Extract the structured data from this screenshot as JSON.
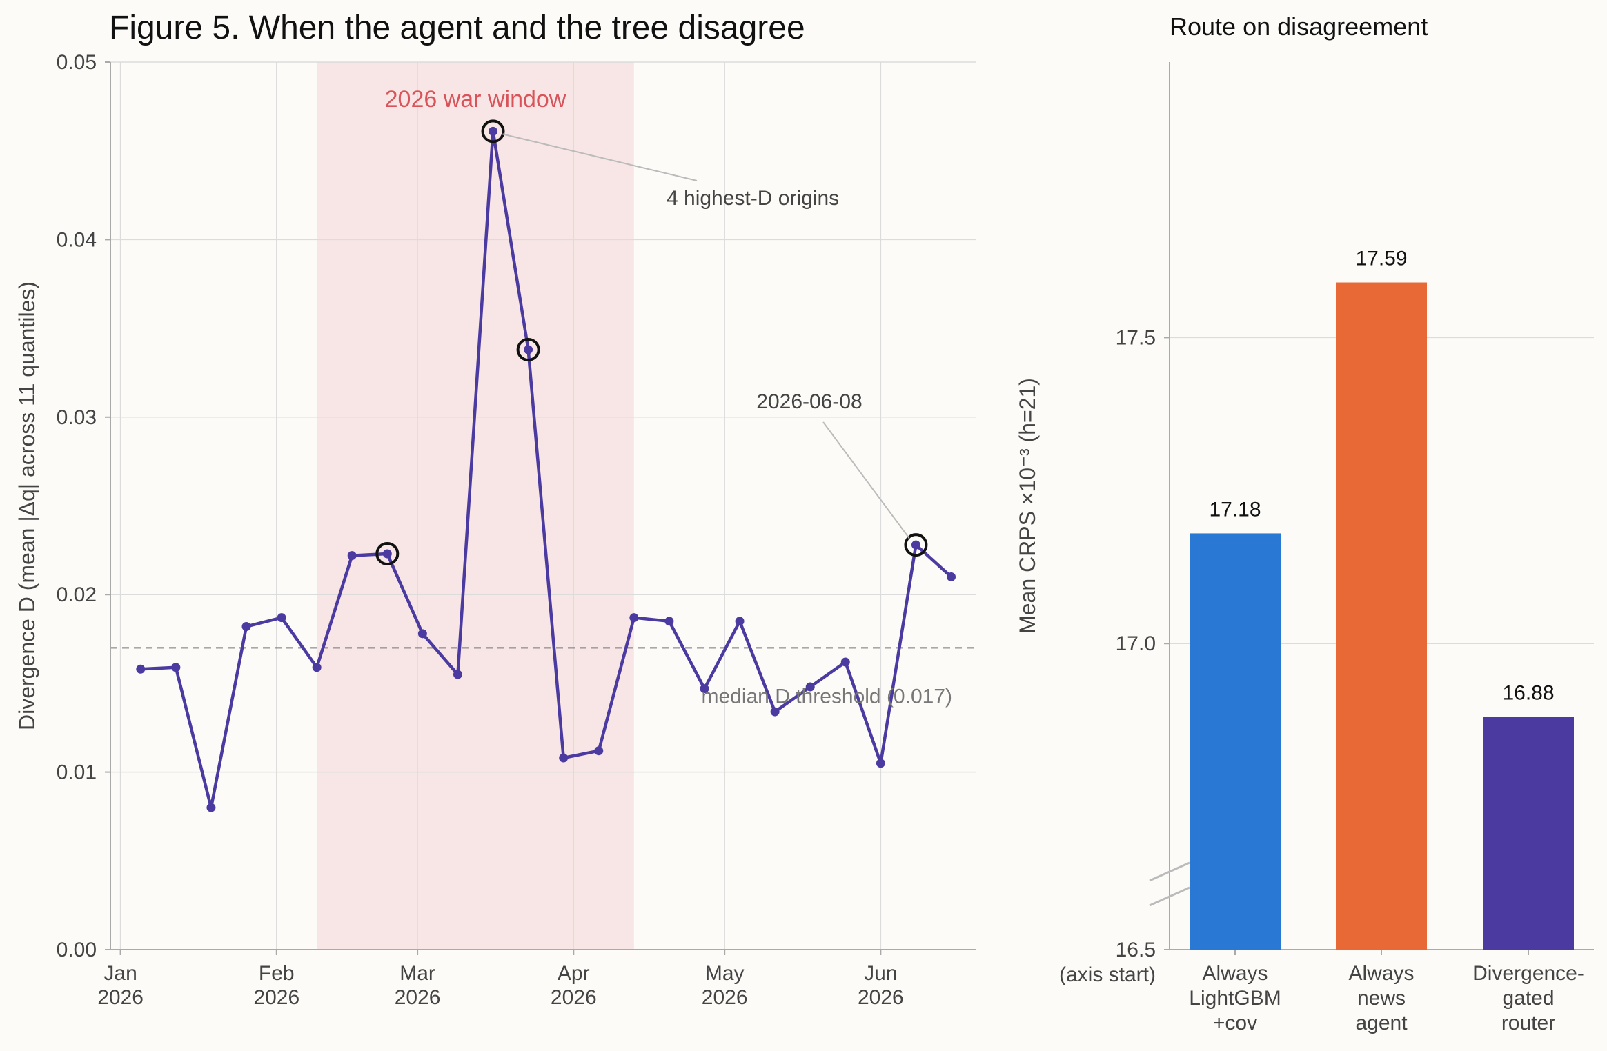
{
  "figure": {
    "title": "Figure 5.  When the agent and the tree disagree"
  },
  "colors": {
    "series": "#4b3aa0",
    "war_band": "#f7e6e5",
    "war_text": "#d9545a",
    "median": "#777777",
    "bar_lightgbm": "#2878d4",
    "bar_news": "#e96936",
    "bar_router": "#4b3aa0"
  },
  "chart_data": [
    {
      "type": "line",
      "title": "",
      "xlabel": "",
      "ylabel": "Divergence D  (mean |Δq| across 11 quantiles)",
      "ylim": [
        0,
        0.05
      ],
      "yticks": [
        "0.00",
        "0.01",
        "0.02",
        "0.03",
        "0.04",
        "0.05"
      ],
      "xlim": [
        "2025-12-30",
        "2026-06-20"
      ],
      "xticks": [
        {
          "date": "2026-01-01",
          "label": "Jan\n2026"
        },
        {
          "date": "2026-02-01",
          "label": "Feb\n2026"
        },
        {
          "date": "2026-03-01",
          "label": "Mar\n2026"
        },
        {
          "date": "2026-04-01",
          "label": "Apr\n2026"
        },
        {
          "date": "2026-05-01",
          "label": "May\n2026"
        },
        {
          "date": "2026-06-01",
          "label": "Jun\n2026"
        }
      ],
      "grid": true,
      "series": [
        {
          "points": [
            {
              "x": "2026-01-05",
              "y": 0.0158
            },
            {
              "x": "2026-01-12",
              "y": 0.0159
            },
            {
              "x": "2026-01-19",
              "y": 0.008
            },
            {
              "x": "2026-01-26",
              "y": 0.0182
            },
            {
              "x": "2026-02-02",
              "y": 0.0187
            },
            {
              "x": "2026-02-09",
              "y": 0.0159
            },
            {
              "x": "2026-02-16",
              "y": 0.0222
            },
            {
              "x": "2026-02-23",
              "y": 0.0223
            },
            {
              "x": "2026-03-02",
              "y": 0.0178
            },
            {
              "x": "2026-03-09",
              "y": 0.0155
            },
            {
              "x": "2026-03-16",
              "y": 0.0461
            },
            {
              "x": "2026-03-23",
              "y": 0.0338
            },
            {
              "x": "2026-03-30",
              "y": 0.0108
            },
            {
              "x": "2026-04-06",
              "y": 0.0112
            },
            {
              "x": "2026-04-13",
              "y": 0.0187
            },
            {
              "x": "2026-04-20",
              "y": 0.0185
            },
            {
              "x": "2026-04-27",
              "y": 0.0147
            },
            {
              "x": "2026-05-04",
              "y": 0.0185
            },
            {
              "x": "2026-05-11",
              "y": 0.0134
            },
            {
              "x": "2026-05-18",
              "y": 0.0148
            },
            {
              "x": "2026-05-25",
              "y": 0.0162
            },
            {
              "x": "2026-06-01",
              "y": 0.0105
            },
            {
              "x": "2026-06-08",
              "y": 0.0228
            },
            {
              "x": "2026-06-15",
              "y": 0.021
            }
          ]
        }
      ],
      "highlighted_points": [
        "2026-02-23",
        "2026-03-16",
        "2026-03-23",
        "2026-06-08"
      ],
      "shaded_region": {
        "x_start": "2026-02-09",
        "x_end": "2026-04-13",
        "label": "2026 war window"
      },
      "hline": {
        "y": 0.017,
        "label": "median D threshold (0.017)"
      },
      "annotations": [
        {
          "text": "4 highest-D origins",
          "points_to": "2026-03-16"
        },
        {
          "text": "2026-06-08",
          "points_to": "2026-06-08"
        }
      ]
    },
    {
      "type": "bar",
      "title": "Route on disagreement",
      "ylabel": "Mean CRPS ×10⁻³  (h=21)",
      "ylim": [
        16.5,
        17.95
      ],
      "yticks": [
        "16.5\n(axis start)",
        "17.0",
        "17.5"
      ],
      "axis_break": true,
      "grid": true,
      "categories": [
        "Always\nLightGBM\n+cov",
        "Always\nnews\nagent",
        "Divergence-\ngated\nrouter"
      ],
      "values": [
        17.18,
        17.59,
        16.88
      ],
      "value_labels": [
        "17.18",
        "17.59",
        "16.88"
      ]
    }
  ]
}
